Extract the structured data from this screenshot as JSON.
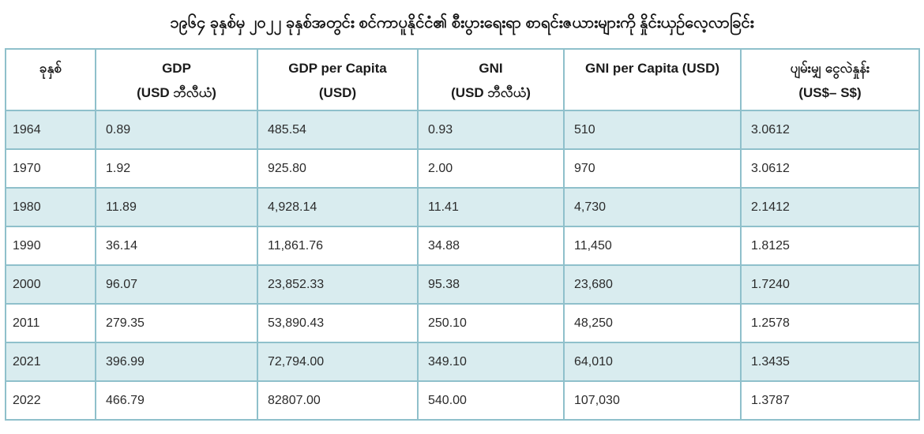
{
  "title": "၁၉၆၄ ခုနှစ်မှ ၂၀၂၂ ခုနှစ်အတွင်း စင်ကာပူနိုင်ငံ၏ စီးပွားရေးရာ စာရင်းဇယားများကို နှိုင်းယှဉ်လေ့လာခြင်း",
  "colors": {
    "border": "#8fc0cb",
    "row_shade": "#d9ecef",
    "cell_text": "#2b2b2b",
    "header_text": "#1b1b1b",
    "background": "#ffffff"
  },
  "table": {
    "columns": [
      {
        "line1": "ခုနှစ်",
        "line2": ""
      },
      {
        "line1": "GDP",
        "line2": "(USD ဘီလီယံ)"
      },
      {
        "line1": "GDP per Capita",
        "line2": "(USD)"
      },
      {
        "line1": "GNI",
        "line2": "(USD ဘီလီယံ)"
      },
      {
        "line1": "GNI per Capita (USD)",
        "line2": ""
      },
      {
        "line1": "ပျမ်းမျှ ငွေလဲနှုန်း",
        "line2": "(US$– S$)"
      }
    ],
    "rows": [
      [
        "1964",
        "0.89",
        "485.54",
        "0.93",
        "510",
        "3.0612"
      ],
      [
        "1970",
        "1.92",
        "925.80",
        "2.00",
        "970",
        "3.0612"
      ],
      [
        "1980",
        "11.89",
        "4,928.14",
        "11.41",
        "4,730",
        "2.1412"
      ],
      [
        "1990",
        "36.14",
        "11,861.76",
        "34.88",
        "11,450",
        "1.8125"
      ],
      [
        "2000",
        "96.07",
        "23,852.33",
        "95.38",
        "23,680",
        "1.7240"
      ],
      [
        "2011",
        "279.35",
        "53,890.43",
        "250.10",
        "48,250",
        "1.2578"
      ],
      [
        "2021",
        "396.99",
        "72,794.00",
        "349.10",
        "64,010",
        "1.3435"
      ],
      [
        "2022",
        "466.79",
        "82807.00",
        "540.00",
        "107,030",
        "1.3787"
      ]
    ]
  },
  "chart_data": {
    "type": "table",
    "title": "၁၉၆၄ ခုနှစ်မှ ၂၀၂၂ ခုနှစ်အတွင်း စင်ကာပူနိုင်ငံ၏ စီးပွားရေးရာ စာရင်းဇယားများကို နှိုင်းယှဉ်လေ့လာခြင်း",
    "columns": [
      "ခုနှစ်",
      "GDP (USD ဘီလီယံ)",
      "GDP per Capita (USD)",
      "GNI (USD ဘီလီယံ)",
      "GNI per Capita (USD)",
      "ပျမ်းမျှ ငွေလဲနှုန်း (US$– S$)"
    ],
    "rows": [
      [
        1964,
        0.89,
        485.54,
        0.93,
        510,
        3.0612
      ],
      [
        1970,
        1.92,
        925.8,
        2.0,
        970,
        3.0612
      ],
      [
        1980,
        11.89,
        4928.14,
        11.41,
        4730,
        2.1412
      ],
      [
        1990,
        36.14,
        11861.76,
        34.88,
        11450,
        1.8125
      ],
      [
        2000,
        96.07,
        23852.33,
        95.38,
        23680,
        1.724
      ],
      [
        2011,
        279.35,
        53890.43,
        250.1,
        48250,
        1.2578
      ],
      [
        2021,
        396.99,
        72794.0,
        349.1,
        64010,
        1.3435
      ],
      [
        2022,
        466.79,
        82807.0,
        540.0,
        107030,
        1.3787
      ]
    ]
  }
}
